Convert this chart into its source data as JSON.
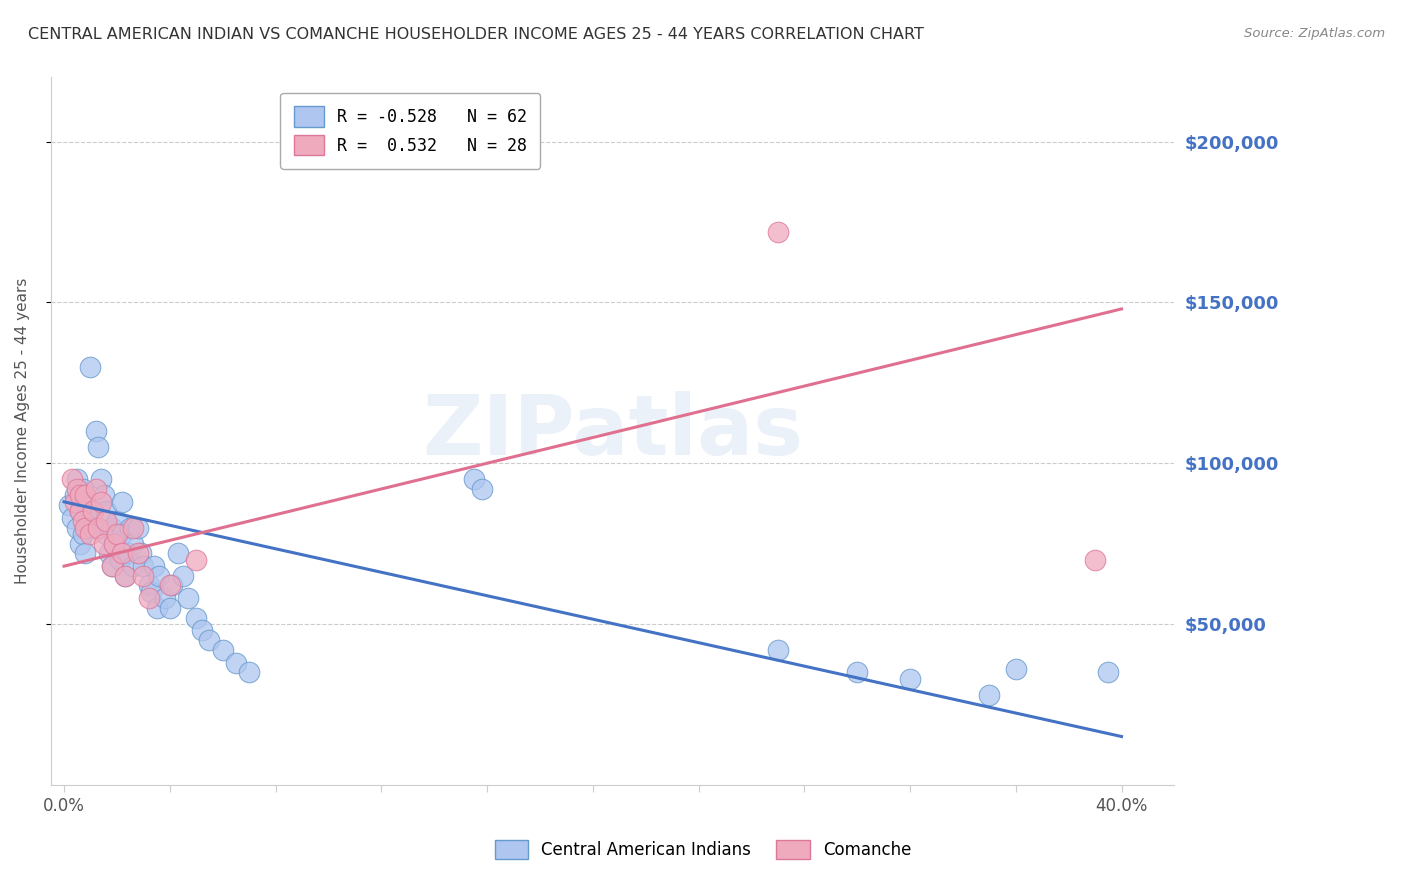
{
  "title": "CENTRAL AMERICAN INDIAN VS COMANCHE HOUSEHOLDER INCOME AGES 25 - 44 YEARS CORRELATION CHART",
  "source": "Source: ZipAtlas.com",
  "ylabel": "Householder Income Ages 25 - 44 years",
  "x_tick_labels_show": [
    "0.0%",
    "40.0%"
  ],
  "x_tick_positions_show": [
    0.0,
    0.4
  ],
  "y_tick_labels": [
    "$50,000",
    "$100,000",
    "$150,000",
    "$200,000"
  ],
  "y_tick_positions": [
    50000,
    100000,
    150000,
    200000
  ],
  "x_minor_ticks": [
    0.04,
    0.08,
    0.12,
    0.16,
    0.2,
    0.24,
    0.28,
    0.32,
    0.36,
    0.4
  ],
  "xlim": [
    -0.005,
    0.42
  ],
  "ylim": [
    0,
    220000
  ],
  "background_color": "#ffffff",
  "grid_color": "#cccccc",
  "watermark_text": "ZIPatlas",
  "legend_label_blue": "R = -0.528   N = 62",
  "legend_label_pink": "R =  0.532   N = 28",
  "blue_scatter": [
    [
      0.002,
      87000
    ],
    [
      0.003,
      83000
    ],
    [
      0.004,
      90000
    ],
    [
      0.005,
      95000
    ],
    [
      0.005,
      80000
    ],
    [
      0.006,
      85000
    ],
    [
      0.006,
      75000
    ],
    [
      0.007,
      92000
    ],
    [
      0.007,
      78000
    ],
    [
      0.008,
      88000
    ],
    [
      0.008,
      72000
    ],
    [
      0.009,
      82000
    ],
    [
      0.01,
      130000
    ],
    [
      0.01,
      85000
    ],
    [
      0.011,
      80000
    ],
    [
      0.012,
      110000
    ],
    [
      0.013,
      105000
    ],
    [
      0.014,
      95000
    ],
    [
      0.015,
      90000
    ],
    [
      0.016,
      85000
    ],
    [
      0.016,
      78000
    ],
    [
      0.017,
      72000
    ],
    [
      0.018,
      68000
    ],
    [
      0.018,
      80000
    ],
    [
      0.019,
      75000
    ],
    [
      0.02,
      82000
    ],
    [
      0.021,
      70000
    ],
    [
      0.022,
      78000
    ],
    [
      0.022,
      88000
    ],
    [
      0.023,
      65000
    ],
    [
      0.024,
      72000
    ],
    [
      0.025,
      80000
    ],
    [
      0.026,
      68000
    ],
    [
      0.026,
      75000
    ],
    [
      0.028,
      80000
    ],
    [
      0.029,
      72000
    ],
    [
      0.03,
      68000
    ],
    [
      0.032,
      62000
    ],
    [
      0.033,
      60000
    ],
    [
      0.034,
      68000
    ],
    [
      0.035,
      55000
    ],
    [
      0.036,
      65000
    ],
    [
      0.038,
      58000
    ],
    [
      0.04,
      55000
    ],
    [
      0.041,
      62000
    ],
    [
      0.043,
      72000
    ],
    [
      0.045,
      65000
    ],
    [
      0.047,
      58000
    ],
    [
      0.05,
      52000
    ],
    [
      0.052,
      48000
    ],
    [
      0.055,
      45000
    ],
    [
      0.06,
      42000
    ],
    [
      0.065,
      38000
    ],
    [
      0.07,
      35000
    ],
    [
      0.155,
      95000
    ],
    [
      0.158,
      92000
    ],
    [
      0.27,
      42000
    ],
    [
      0.3,
      35000
    ],
    [
      0.32,
      33000
    ],
    [
      0.35,
      28000
    ],
    [
      0.36,
      36000
    ],
    [
      0.395,
      35000
    ]
  ],
  "pink_scatter": [
    [
      0.003,
      95000
    ],
    [
      0.004,
      88000
    ],
    [
      0.005,
      92000
    ],
    [
      0.006,
      85000
    ],
    [
      0.006,
      90000
    ],
    [
      0.007,
      82000
    ],
    [
      0.008,
      80000
    ],
    [
      0.008,
      90000
    ],
    [
      0.01,
      78000
    ],
    [
      0.011,
      85000
    ],
    [
      0.012,
      92000
    ],
    [
      0.013,
      80000
    ],
    [
      0.014,
      88000
    ],
    [
      0.015,
      75000
    ],
    [
      0.016,
      82000
    ],
    [
      0.018,
      68000
    ],
    [
      0.019,
      75000
    ],
    [
      0.02,
      78000
    ],
    [
      0.022,
      72000
    ],
    [
      0.023,
      65000
    ],
    [
      0.026,
      80000
    ],
    [
      0.028,
      72000
    ],
    [
      0.03,
      65000
    ],
    [
      0.032,
      58000
    ],
    [
      0.04,
      62000
    ],
    [
      0.05,
      70000
    ],
    [
      0.27,
      172000
    ],
    [
      0.39,
      70000
    ]
  ],
  "blue_line_x": [
    0.0,
    0.4
  ],
  "blue_line_y": [
    88000,
    15000
  ],
  "pink_line_x": [
    0.0,
    0.4
  ],
  "pink_line_y": [
    68000,
    148000
  ],
  "blue_line_color": "#4472c4",
  "pink_line_color": "#e07090",
  "dot_blue_fill": "#aec6f0",
  "dot_pink_fill": "#f0aabe",
  "dot_blue_edge": "#6699cc",
  "dot_pink_edge": "#dd7799",
  "title_color": "#333333",
  "source_color": "#888888",
  "ylabel_color": "#555555",
  "ytick_color": "#4472c4",
  "xtick_color": "#555555"
}
